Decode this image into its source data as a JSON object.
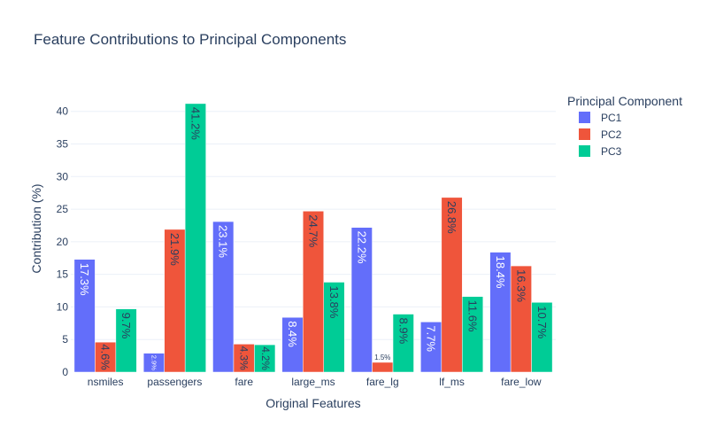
{
  "chart_data": {
    "type": "bar",
    "title": "Feature Contributions to Principal Components",
    "xlabel": "Original Features",
    "ylabel": "Contribution (%)",
    "legend_title": "Principal Component",
    "legend_position": "top-right",
    "ylim": [
      0,
      43.5
    ],
    "yticks": [
      0,
      5,
      10,
      15,
      20,
      25,
      30,
      35,
      40
    ],
    "grid": true,
    "categories": [
      "nsmiles",
      "passengers",
      "fare",
      "large_ms",
      "fare_lg",
      "lf_ms",
      "fare_low"
    ],
    "series": [
      {
        "name": "PC1",
        "color": "#636efa",
        "values": [
          17.3,
          2.9,
          23.1,
          8.4,
          22.2,
          7.7,
          18.4
        ],
        "labels": [
          "17.3%",
          "2.9%",
          "23.1%",
          "8.4%",
          "22.2%",
          "7.7%",
          "18.4%"
        ]
      },
      {
        "name": "PC2",
        "color": "#ef553b",
        "values": [
          4.6,
          21.9,
          4.3,
          24.7,
          1.5,
          26.8,
          16.3
        ],
        "labels": [
          "4.6%",
          "21.9%",
          "4.3%",
          "24.7%",
          "1.5%",
          "26.8%",
          "16.3%"
        ]
      },
      {
        "name": "PC3",
        "color": "#00cc96",
        "values": [
          9.7,
          41.2,
          4.2,
          13.8,
          8.9,
          11.6,
          10.7
        ],
        "labels": [
          "9.7%",
          "41.2%",
          "4.2%",
          "13.8%",
          "8.9%",
          "11.6%",
          "10.7%"
        ]
      }
    ]
  }
}
